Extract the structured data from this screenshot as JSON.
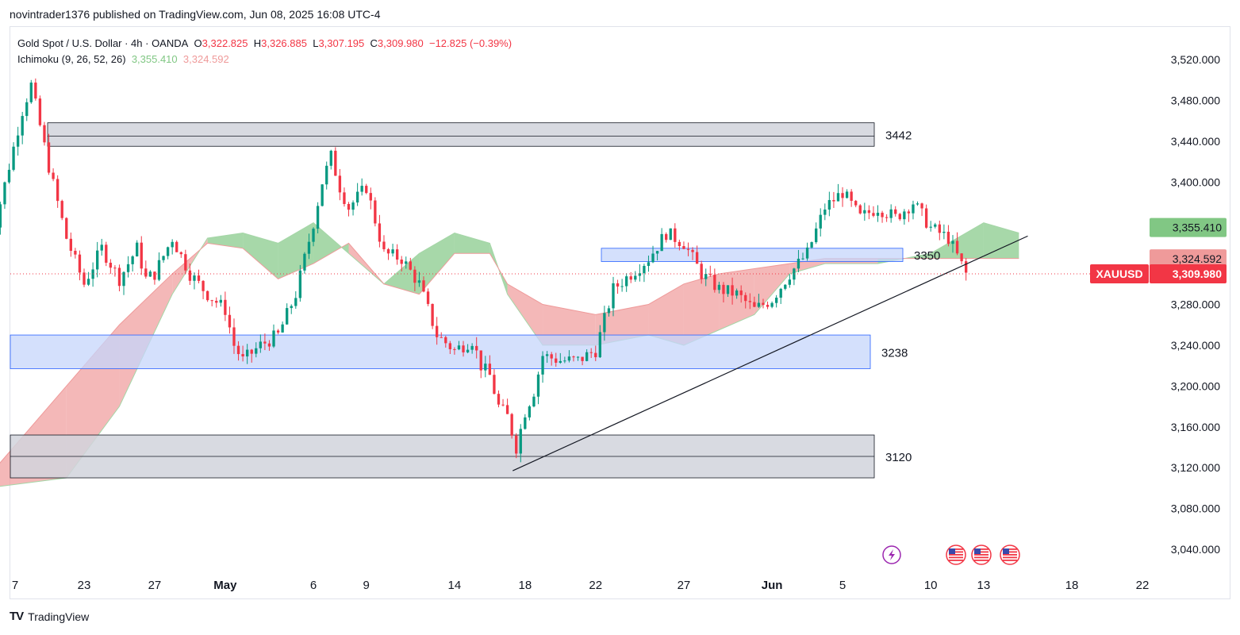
{
  "header": {
    "published": "novintrader1376 published on TradingView.com, Jun 08, 2025 16:08 UTC-4"
  },
  "legend": {
    "symbol": "Gold Spot / U.S. Dollar · 4h · OANDA",
    "o_label": "O",
    "o": "3,322.825",
    "h_label": "H",
    "h": "3,326.885",
    "l_label": "L",
    "l": "3,307.195",
    "c_label": "C",
    "c": "3,309.980",
    "change": "−12.825 (−0.39%)",
    "indicator": "Ichimoku (9, 26, 52, 26)",
    "ind_value1": "3,355.410",
    "ind_value2": "3,324.592"
  },
  "footer": {
    "brand": "TradingView",
    "logo": "TV"
  },
  "colors": {
    "up": "#089981",
    "down": "#f23645",
    "cloud_green": "#81c784",
    "cloud_red": "#ef9a9a",
    "zone_blue": "#c5d5fb",
    "zone_blue_border": "#2962ff",
    "zone_gray": "#d1d4dc"
  },
  "chart_data": {
    "type": "candlestick",
    "symbol": "XAUUSD",
    "timeframe": "4h",
    "ylim": [
      3010,
      3545
    ],
    "y_ticks": [
      3040,
      3080,
      3120,
      3160,
      3200,
      3240,
      3280,
      3320,
      3360,
      3400,
      3440,
      3480,
      3520
    ],
    "y_tick_labels": [
      "3,040.000",
      "3,080.000",
      "3,120.000",
      "3,160.000",
      "3,200.000",
      "3,240.000",
      "3,280.000",
      "3,320.000",
      "3,360.000",
      "3,400.000",
      "3,440.000",
      "3,480.000",
      "3,520.000"
    ],
    "x_ticks": [
      {
        "label": "7",
        "day": -9
      },
      {
        "label": "23",
        "day": 23
      },
      {
        "label": "27",
        "day": 27
      },
      {
        "label": "May",
        "day": 31
      },
      {
        "label": "6",
        "day": 36
      },
      {
        "label": "9",
        "day": 39
      },
      {
        "label": "14",
        "day": 44
      },
      {
        "label": "18",
        "day": 48
      },
      {
        "label": "22",
        "day": 52
      },
      {
        "label": "27",
        "day": 57
      },
      {
        "label": "Jun",
        "day": 62
      },
      {
        "label": "5",
        "day": 66
      },
      {
        "label": "10",
        "day": 71
      },
      {
        "label": "13",
        "day": 74
      },
      {
        "label": "18",
        "day": 79
      },
      {
        "label": "22",
        "day": 83
      }
    ],
    "price_path": [
      [
        17.5,
        3325
      ],
      [
        19.5,
        3470
      ],
      [
        20,
        3495
      ],
      [
        21,
        3415
      ],
      [
        22,
        3345
      ],
      [
        23,
        3300
      ],
      [
        24,
        3335
      ],
      [
        25,
        3305
      ],
      [
        26,
        3335
      ],
      [
        26.5,
        3305
      ],
      [
        27,
        3310
      ],
      [
        28,
        3345
      ],
      [
        29,
        3310
      ],
      [
        30,
        3290
      ],
      [
        31,
        3275
      ],
      [
        31.5,
        3240
      ],
      [
        32,
        3225
      ],
      [
        33,
        3240
      ],
      [
        34,
        3250
      ],
      [
        35,
        3290
      ],
      [
        36,
        3360
      ],
      [
        36.5,
        3400
      ],
      [
        37,
        3425
      ],
      [
        37.5,
        3395
      ],
      [
        38,
        3375
      ],
      [
        39,
        3395
      ],
      [
        40,
        3330
      ],
      [
        41,
        3325
      ],
      [
        42,
        3300
      ],
      [
        43,
        3250
      ],
      [
        44,
        3235
      ],
      [
        45,
        3245
      ],
      [
        45.5,
        3220
      ],
      [
        46,
        3210
      ],
      [
        46.5,
        3180
      ],
      [
        47,
        3170
      ],
      [
        47.5,
        3140
      ],
      [
        48,
        3175
      ],
      [
        48.5,
        3195
      ],
      [
        49,
        3230
      ],
      [
        50,
        3225
      ],
      [
        51,
        3225
      ],
      [
        52,
        3235
      ],
      [
        53,
        3295
      ],
      [
        54,
        3310
      ],
      [
        55,
        3325
      ],
      [
        56,
        3350
      ],
      [
        57,
        3340
      ],
      [
        58,
        3310
      ],
      [
        59,
        3295
      ],
      [
        60,
        3290
      ],
      [
        61,
        3275
      ],
      [
        62,
        3285
      ],
      [
        63,
        3310
      ],
      [
        64,
        3330
      ],
      [
        65,
        3375
      ],
      [
        66,
        3390
      ],
      [
        67,
        3365
      ],
      [
        68,
        3375
      ],
      [
        69,
        3365
      ],
      [
        70,
        3380
      ],
      [
        71,
        3355
      ],
      [
        72,
        3345
      ],
      [
        73,
        3310
      ]
    ],
    "ichimoku_cloud": {
      "span_a": [
        [
          17.5,
          3100
        ],
        [
          22,
          3110
        ],
        [
          25,
          3180
        ],
        [
          28,
          3290
        ],
        [
          30,
          3345
        ],
        [
          32,
          3350
        ],
        [
          34,
          3340
        ],
        [
          36,
          3360
        ],
        [
          38,
          3330
        ],
        [
          40,
          3300
        ],
        [
          42,
          3330
        ],
        [
          44,
          3350
        ],
        [
          46,
          3340
        ],
        [
          47,
          3290
        ],
        [
          49,
          3240
        ],
        [
          52,
          3240
        ],
        [
          55,
          3250
        ],
        [
          57,
          3240
        ],
        [
          59,
          3255
        ],
        [
          61,
          3270
        ],
        [
          63,
          3310
        ],
        [
          65,
          3320
        ],
        [
          68,
          3320
        ],
        [
          71,
          3330
        ],
        [
          74,
          3360
        ],
        [
          76,
          3350
        ]
      ],
      "span_b": [
        [
          17.5,
          3110
        ],
        [
          22,
          3200
        ],
        [
          25,
          3260
        ],
        [
          28,
          3310
        ],
        [
          30,
          3340
        ],
        [
          32,
          3335
        ],
        [
          34,
          3305
        ],
        [
          36,
          3320
        ],
        [
          38,
          3340
        ],
        [
          40,
          3300
        ],
        [
          42,
          3290
        ],
        [
          44,
          3330
        ],
        [
          46,
          3330
        ],
        [
          47,
          3300
        ],
        [
          49,
          3280
        ],
        [
          52,
          3270
        ],
        [
          55,
          3280
        ],
        [
          57,
          3300
        ],
        [
          59,
          3310
        ],
        [
          61,
          3315
        ],
        [
          63,
          3320
        ],
        [
          65,
          3325
        ],
        [
          68,
          3325
        ],
        [
          71,
          3325
        ],
        [
          74,
          3325
        ],
        [
          76,
          3325
        ]
      ]
    },
    "zones": [
      {
        "label": "3442",
        "kind": "resistance",
        "y_low": 3435,
        "y_mid": 3445,
        "y_high": 3458
      },
      {
        "label": "3350",
        "kind": "resistance",
        "y_low": 3322,
        "y_high": 3335
      },
      {
        "label": "3238",
        "kind": "support",
        "y_low": 3217,
        "y_high": 3250
      },
      {
        "label": "3120",
        "kind": "support",
        "y_low": 3110,
        "y_mid": 3131,
        "y_high": 3152
      }
    ],
    "trendline": {
      "start": [
        47.3,
        3117
      ],
      "end": [
        76.5,
        3347
      ]
    },
    "last_price": {
      "label": "XAUUSD",
      "value": 3309.98,
      "text": "3,309.980"
    },
    "ichimoku_tags": [
      {
        "value": 3355.41,
        "text": "3,355.410",
        "color": "#81c784"
      },
      {
        "value": 3324.592,
        "text": "3,324.592",
        "color": "#ef9a9a"
      }
    ],
    "event_markers": [
      "lightning-icon",
      "us-flag-icon",
      "us-flag-icon",
      "us-flag-icon"
    ]
  }
}
